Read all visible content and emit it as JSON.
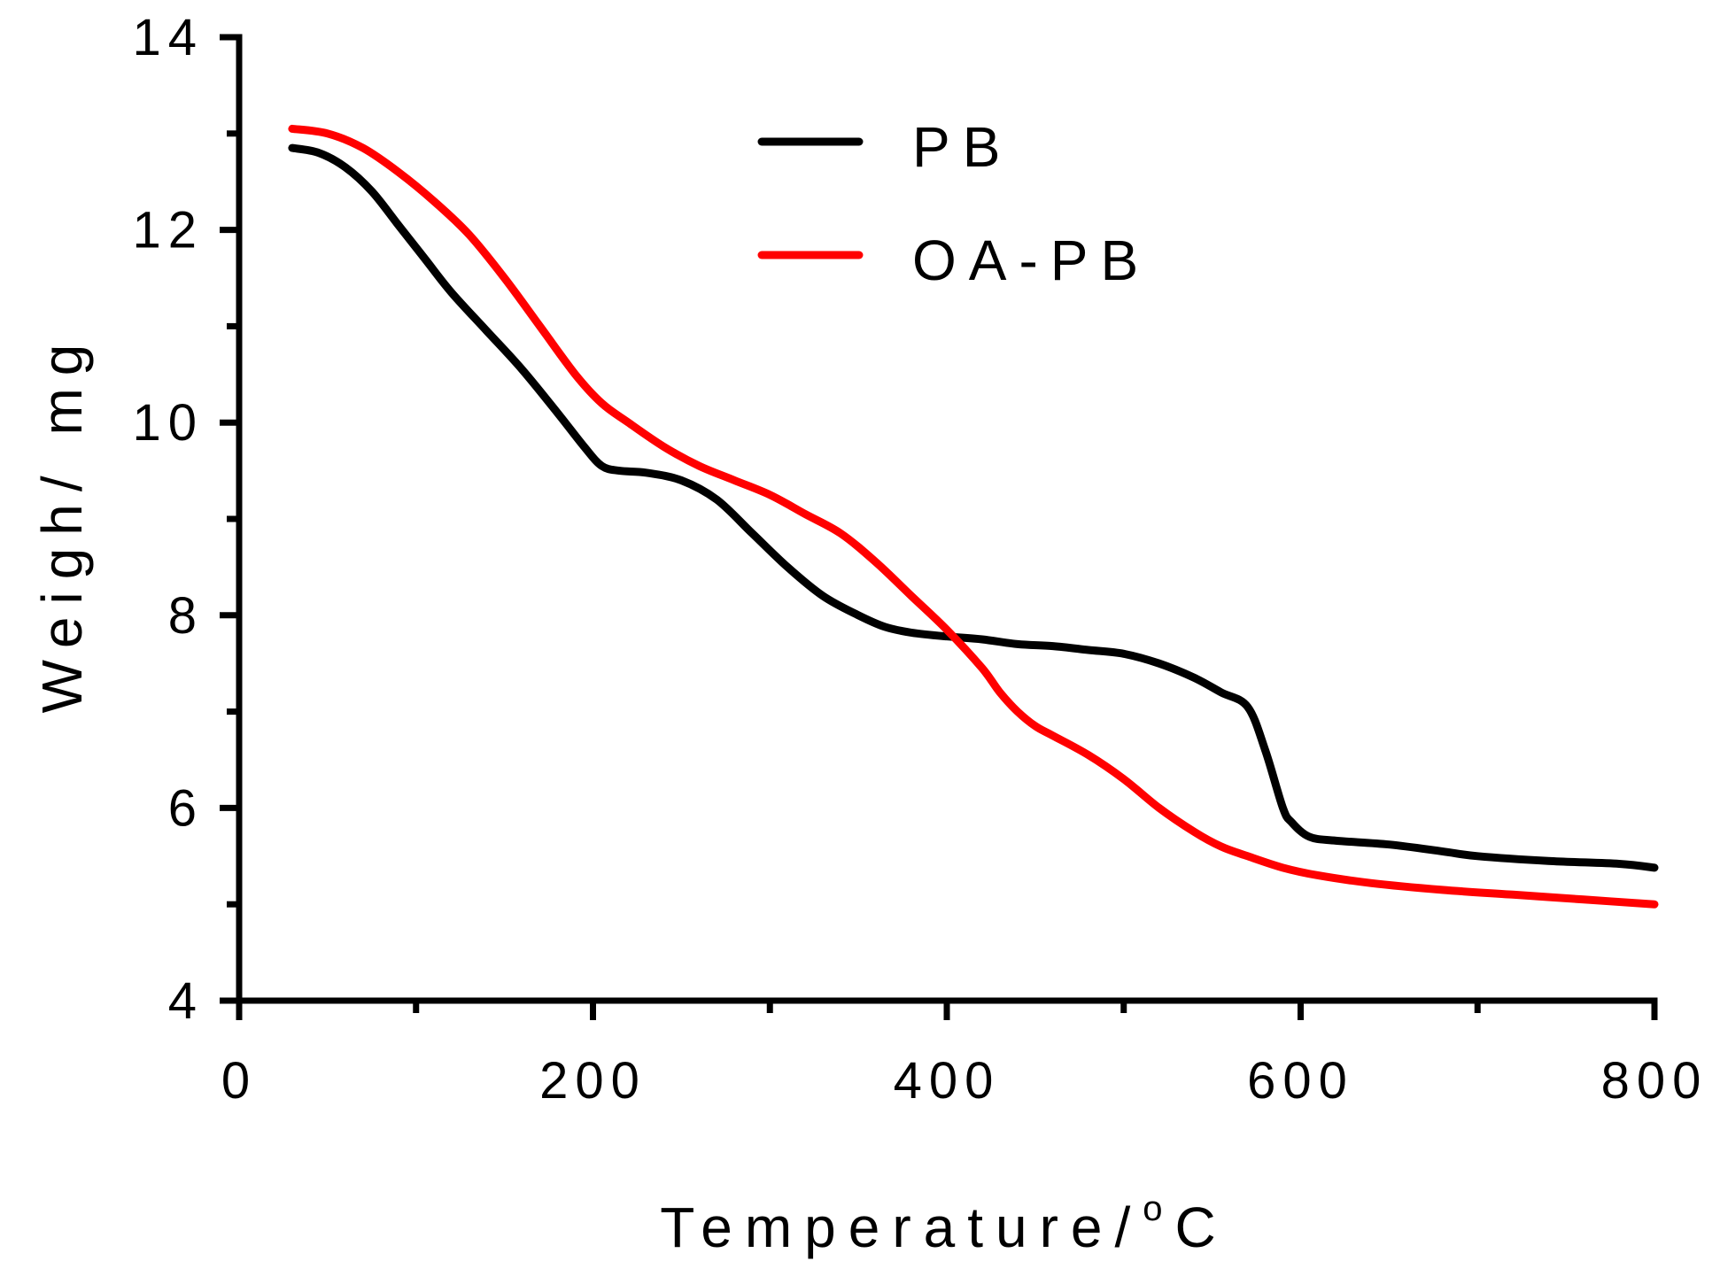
{
  "chart_data": {
    "type": "line",
    "title": "",
    "xlabel": "Temperature/",
    "xlabel_superscript": "o",
    "xlabel_suffix": "C",
    "ylabel": "Weigh/ mg",
    "xlim": [
      0,
      800
    ],
    "ylim": [
      4,
      14
    ],
    "x_ticks": [
      "0",
      "200",
      "400",
      "600",
      "800"
    ],
    "y_ticks": [
      "4",
      "6",
      "8",
      "10",
      "12",
      "14"
    ],
    "grid": false,
    "legend_position": "top-center",
    "series": [
      {
        "name": "PB",
        "color": "#000000",
        "x": [
          30,
          45,
          60,
          75,
          90,
          105,
          120,
          140,
          160,
          180,
          195,
          205,
          215,
          230,
          250,
          270,
          290,
          310,
          330,
          350,
          365,
          380,
          400,
          420,
          440,
          460,
          480,
          500,
          520,
          540,
          555,
          570,
          580,
          590,
          595,
          605,
          620,
          650,
          680,
          700,
          740,
          780,
          800
        ],
        "y": [
          12.85,
          12.8,
          12.65,
          12.4,
          12.05,
          11.7,
          11.35,
          10.95,
          10.55,
          10.1,
          9.75,
          9.55,
          9.5,
          9.48,
          9.4,
          9.2,
          8.85,
          8.5,
          8.2,
          8.0,
          7.88,
          7.82,
          7.78,
          7.75,
          7.7,
          7.68,
          7.64,
          7.6,
          7.5,
          7.35,
          7.2,
          7.05,
          6.6,
          6.0,
          5.85,
          5.7,
          5.66,
          5.62,
          5.55,
          5.5,
          5.45,
          5.42,
          5.38
        ]
      },
      {
        "name": "OA-PB",
        "color": "#ff0000",
        "x": [
          30,
          50,
          70,
          90,
          110,
          130,
          150,
          170,
          190,
          205,
          220,
          240,
          260,
          280,
          300,
          320,
          340,
          360,
          380,
          400,
          420,
          430,
          440,
          450,
          460,
          480,
          500,
          520,
          540,
          555,
          570,
          590,
          610,
          640,
          680,
          720,
          760,
          800
        ],
        "y": [
          13.05,
          13.0,
          12.85,
          12.6,
          12.3,
          11.95,
          11.5,
          11.0,
          10.5,
          10.2,
          10.0,
          9.75,
          9.55,
          9.4,
          9.25,
          9.05,
          8.85,
          8.55,
          8.2,
          7.85,
          7.45,
          7.2,
          7.0,
          6.85,
          6.75,
          6.55,
          6.3,
          6.0,
          5.75,
          5.6,
          5.5,
          5.38,
          5.3,
          5.22,
          5.15,
          5.1,
          5.05,
          5.0
        ]
      }
    ]
  }
}
